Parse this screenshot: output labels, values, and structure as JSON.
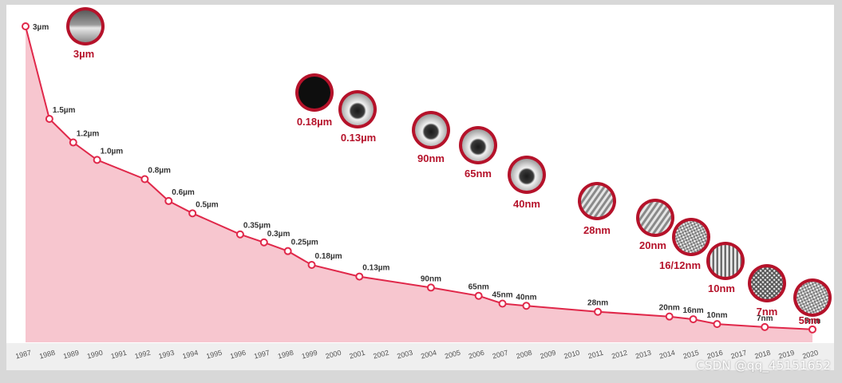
{
  "chart_data": {
    "type": "line",
    "title": "",
    "xlabel": "",
    "ylabel": "",
    "x": [
      1987,
      1988,
      1989,
      1990,
      1992,
      1993,
      1994,
      1996,
      1997,
      1998,
      1999,
      2001,
      2004,
      2006,
      2007,
      2008,
      2011,
      2014,
      2015,
      2016,
      2018,
      2020
    ],
    "values_label": [
      "3µm",
      "1.5µm",
      "1.2µm",
      "1.0µm",
      "0.8µm",
      "0.6µm",
      "0.5µm",
      "0.35µm",
      "0.3µm",
      "0.25µm",
      "0.18µm",
      "0.13µm",
      "90nm",
      "65nm",
      "45nm",
      "40nm",
      "28nm",
      "20nm",
      "16nm",
      "10nm",
      "7nm",
      "5nm"
    ],
    "y": [
      3000,
      1500,
      1200,
      1000,
      800,
      600,
      500,
      350,
      300,
      250,
      180,
      130,
      90,
      65,
      45,
      40,
      28,
      20,
      16,
      10,
      7,
      5
    ],
    "y_unit": "nm",
    "xlim": [
      1987,
      2020
    ],
    "x_ticks": [
      1987,
      1988,
      1989,
      1990,
      1991,
      1992,
      1993,
      1994,
      1995,
      1996,
      1997,
      1998,
      1999,
      2000,
      2001,
      2002,
      2003,
      2004,
      2005,
      2006,
      2007,
      2008,
      2009,
      2010,
      2011,
      2012,
      2013,
      2014,
      2015,
      2016,
      2017,
      2018,
      2019,
      2020
    ],
    "grid": false,
    "series_color": "#e0284a",
    "fill_color": "#f7c6cf",
    "image_callouts": [
      {
        "label": "3µm",
        "texture": "wave"
      },
      {
        "label": "0.18µm",
        "texture": "dark"
      },
      {
        "label": "0.13µm",
        "texture": "hole"
      },
      {
        "label": "90nm",
        "texture": "hole"
      },
      {
        "label": "65nm",
        "texture": "hole"
      },
      {
        "label": "40nm",
        "texture": "hole"
      },
      {
        "label": "28nm",
        "texture": "diagonal"
      },
      {
        "label": "20nm",
        "texture": "diagonal"
      },
      {
        "label": "16/12nm",
        "texture": "grid"
      },
      {
        "label": "10nm",
        "texture": "vertical"
      },
      {
        "label": "7nm",
        "texture": "mesh"
      },
      {
        "label": "5nm",
        "texture": "grid"
      }
    ]
  },
  "watermark": "CSDN @qq_45151652"
}
